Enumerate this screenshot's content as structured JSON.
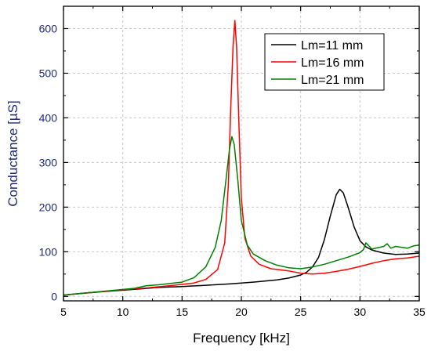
{
  "chart_data": {
    "type": "line",
    "xlabel": "Frequency [kHz]",
    "ylabel": "Conductance [µS]",
    "xlim": [
      5,
      35
    ],
    "ylim": [
      -10,
      650
    ],
    "xticks": [
      "5",
      "10",
      "15",
      "20",
      "25",
      "30",
      "35"
    ],
    "yticks": [
      "0",
      "100",
      "200",
      "300",
      "400",
      "500",
      "600"
    ],
    "grid": true,
    "legend_position": "top-right",
    "series": [
      {
        "name": "Lm=11 mm",
        "color": "#000000",
        "points": [
          [
            5,
            3
          ],
          [
            7,
            8
          ],
          [
            9,
            12
          ],
          [
            11,
            16
          ],
          [
            13,
            20
          ],
          [
            15,
            22
          ],
          [
            17,
            25
          ],
          [
            19,
            28
          ],
          [
            21,
            32
          ],
          [
            23,
            37
          ],
          [
            24,
            41
          ],
          [
            25,
            48
          ],
          [
            25.5,
            54
          ],
          [
            26,
            66
          ],
          [
            26.5,
            87
          ],
          [
            27,
            127
          ],
          [
            27.5,
            180
          ],
          [
            28,
            228
          ],
          [
            28.3,
            240
          ],
          [
            28.6,
            232
          ],
          [
            29,
            200
          ],
          [
            29.5,
            156
          ],
          [
            30,
            125
          ],
          [
            30.5,
            111
          ],
          [
            31,
            104
          ],
          [
            32,
            97
          ],
          [
            33,
            94
          ],
          [
            34,
            95
          ],
          [
            35,
            97
          ]
        ]
      },
      {
        "name": "Lm=16 mm",
        "color": "#ff0000",
        "points": [
          [
            5,
            3
          ],
          [
            8,
            10
          ],
          [
            10,
            15
          ],
          [
            12,
            19
          ],
          [
            14,
            24
          ],
          [
            16,
            30
          ],
          [
            17,
            38
          ],
          [
            18,
            60
          ],
          [
            18.6,
            120
          ],
          [
            18.9,
            250
          ],
          [
            19.1,
            420
          ],
          [
            19.3,
            560
          ],
          [
            19.45,
            618
          ],
          [
            19.6,
            560
          ],
          [
            19.8,
            380
          ],
          [
            20,
            220
          ],
          [
            20.3,
            130
          ],
          [
            20.8,
            90
          ],
          [
            21.5,
            72
          ],
          [
            22.5,
            62
          ],
          [
            24,
            57
          ],
          [
            25,
            52
          ],
          [
            26,
            50
          ],
          [
            27,
            52
          ],
          [
            28,
            56
          ],
          [
            29,
            61
          ],
          [
            30,
            67
          ],
          [
            31,
            74
          ],
          [
            32,
            80
          ],
          [
            33,
            84
          ],
          [
            34,
            86
          ],
          [
            35,
            90
          ]
        ]
      },
      {
        "name": "Lm=21 mm",
        "color": "#008000",
        "points": [
          [
            5,
            3
          ],
          [
            7,
            8
          ],
          [
            9,
            13
          ],
          [
            11,
            18
          ],
          [
            12,
            24
          ],
          [
            13,
            26
          ],
          [
            15,
            32
          ],
          [
            16,
            42
          ],
          [
            17,
            66
          ],
          [
            17.8,
            110
          ],
          [
            18.3,
            170
          ],
          [
            18.7,
            260
          ],
          [
            19,
            330
          ],
          [
            19.2,
            358
          ],
          [
            19.4,
            340
          ],
          [
            19.7,
            260
          ],
          [
            20,
            170
          ],
          [
            20.5,
            115
          ],
          [
            21,
            95
          ],
          [
            22,
            80
          ],
          [
            23,
            70
          ],
          [
            24,
            64
          ],
          [
            25,
            62
          ],
          [
            26,
            66
          ],
          [
            27,
            72
          ],
          [
            28,
            80
          ],
          [
            29,
            88
          ],
          [
            30,
            98
          ],
          [
            30.3,
            105
          ],
          [
            30.5,
            120
          ],
          [
            30.8,
            112
          ],
          [
            31,
            106
          ],
          [
            32,
            112
          ],
          [
            32.3,
            118
          ],
          [
            32.6,
            108
          ],
          [
            33,
            112
          ],
          [
            34,
            108
          ],
          [
            34.5,
            113
          ],
          [
            35,
            115
          ]
        ]
      }
    ]
  }
}
